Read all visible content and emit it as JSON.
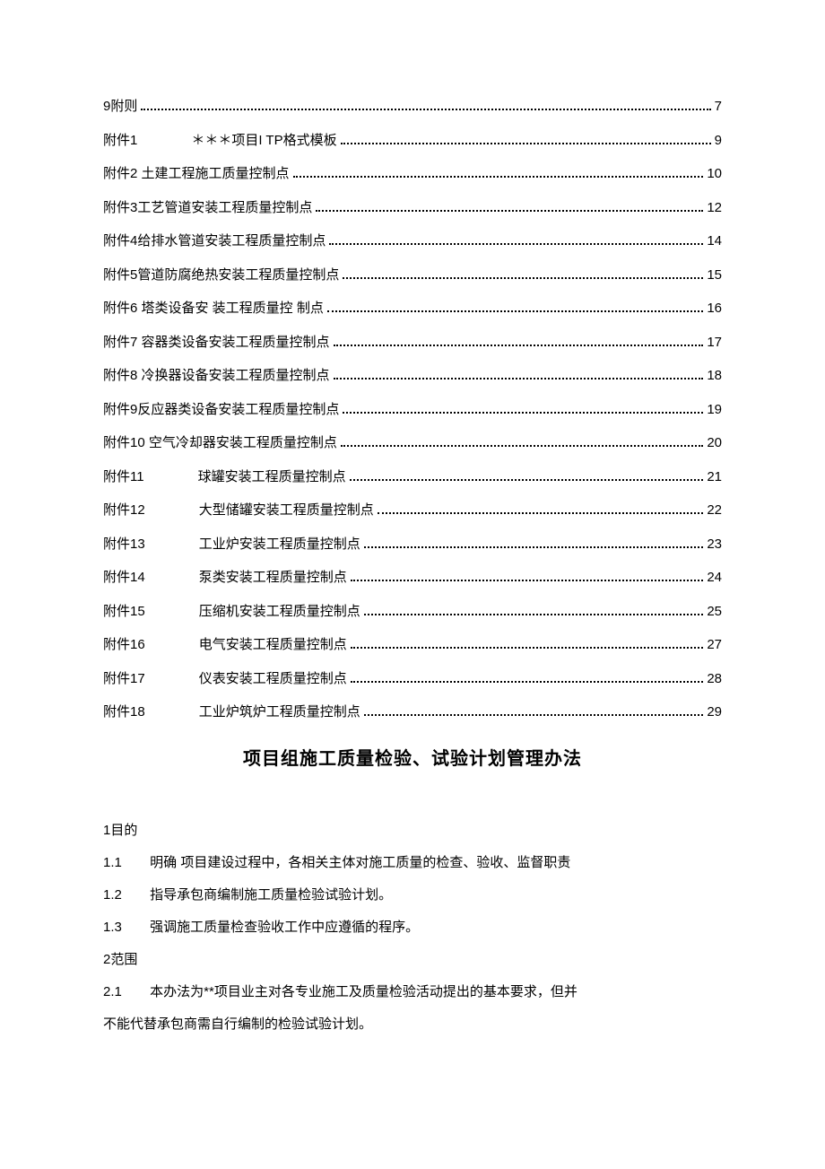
{
  "toc": [
    {
      "label": "9附则",
      "page": "7",
      "gap": false
    },
    {
      "label": "附件1",
      "label2": "＊＊＊项目I TP格式模板",
      "page": "9",
      "gap": true
    },
    {
      "label": "附件2 土建工程施工质量控制点",
      "page": "10",
      "gap": false
    },
    {
      "label": "附件3工艺管道安装工程质量控制点",
      "page": "12",
      "gap": false
    },
    {
      "label": "附件4给排水管道安装工程质量控制点",
      "page": "14",
      "gap": false
    },
    {
      "label": "附件5管道防腐绝热安装工程质量控制点",
      "page": "15",
      "gap": false
    },
    {
      "label": "附件6 塔类设备安  装工程质量控  制点",
      "page": "16",
      "gap": false
    },
    {
      "label": "附件7 容器类设备安装工程质量控制点",
      "page": "17",
      "gap": false
    },
    {
      "label": "附件8 冷换器设备安装工程质量控制点",
      "page": "18",
      "gap": false
    },
    {
      "label": "附件9反应器类设备安装工程质量控制点",
      "page": "19",
      "gap": false
    },
    {
      "label": "附件10 空气冷却器安装工程质量控制点",
      "page": "20",
      "gap": false
    },
    {
      "label": "附件11",
      "label2": "球罐安装工程质量控制点",
      "page": "21",
      "gap": true
    },
    {
      "label": "附件12",
      "label2": "大型储罐安装工程质量控制点",
      "page": "22",
      "gap": true
    },
    {
      "label": "附件13",
      "label2": "工业炉安装工程质量控制点",
      "page": "23",
      "gap": true
    },
    {
      "label": "附件14",
      "label2": "泵类安装工程质量控制点",
      "page": "24",
      "gap": true
    },
    {
      "label": "附件15",
      "label2": "压缩机安装工程质量控制点",
      "page": "25",
      "gap": true
    },
    {
      "label": "附件16",
      "label2": "电气安装工程质量控制点",
      "page": "27",
      "gap": true
    },
    {
      "label": "附件17",
      "label2": "仪表安装工程质量控制点",
      "page": "28",
      "gap": true
    },
    {
      "label": "附件18",
      "label2": "工业炉筑炉工程质量控制点",
      "page": "29",
      "gap": true
    }
  ],
  "title": "项目组施工质量检验、试验计划管理办法",
  "sections": {
    "s1_heading": "1目的",
    "s1_1_num": "1.1",
    "s1_1_text": "明确    项目建设过程中，各相关主体对施工质量的检查、验收、监督职责",
    "s1_2_num": "1.2",
    "s1_2_text": "指导承包商编制施工质量检验试验计划。",
    "s1_3_num": "1.3",
    "s1_3_text": "强调施工质量检查验收工作中应遵循的程序。",
    "s2_heading": "2范围",
    "s2_1_num": "2.1",
    "s2_1_text": "本办法为**项目业主对各专业施工及质量检验活动提出的基本要求，但并",
    "s2_1_cont": "不能代替承包商需自行编制的检验试验计划。"
  }
}
